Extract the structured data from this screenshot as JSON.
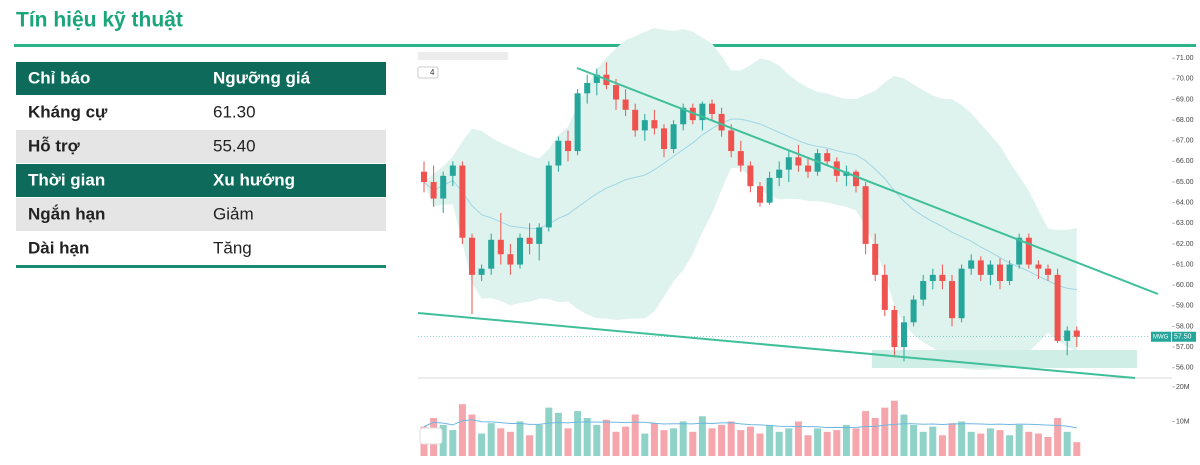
{
  "header": {
    "title": "Tín hiệu kỹ thuật"
  },
  "table": {
    "sections": [
      {
        "header": [
          "Chỉ báo",
          "Ngưỡng giá"
        ],
        "rows": [
          [
            "Kháng cự",
            "61.30"
          ],
          [
            "Hỗ trợ",
            "55.40"
          ]
        ]
      },
      {
        "header": [
          "Thời gian",
          "Xu hướng"
        ],
        "rows": [
          [
            "Ngắn hạn",
            "Giảm"
          ],
          [
            "Dài hạn",
            "Tăng"
          ]
        ]
      }
    ]
  },
  "chart_data": {
    "type": "candlestick",
    "symbol": "MWG",
    "toolbar_label": "4",
    "last_price": {
      "value": 57.5,
      "label": "57.50"
    },
    "up_color": "#26a69a",
    "down_color": "#ef5350",
    "volume_up_color": "#8fd3c8",
    "volume_down_color": "#f5a6ad",
    "open": [
      65.5,
      65,
      64.2,
      65.3,
      65.8,
      62.3,
      60.5,
      60.8,
      62.2,
      61.5,
      61,
      62.3,
      62,
      62.8,
      65.8,
      67,
      66.5,
      69.3,
      69.8,
      70.2,
      69.7,
      69,
      68.5,
      67.5,
      68,
      67.6,
      66.6,
      67.8,
      68.6,
      68,
      68.8,
      68.3,
      67.5,
      66.5,
      65.8,
      64.8,
      64,
      65.2,
      65.6,
      66.2,
      65.8,
      65.5,
      66.4,
      66,
      65.3,
      65.5,
      64.8,
      62,
      60.5,
      58.8,
      57,
      58.2,
      59.3,
      60.2,
      60.5,
      60.2,
      58.4,
      60.8,
      61.2,
      60.5,
      61,
      60.2,
      61,
      62.3,
      61,
      60.8,
      60.5,
      57.3,
      57.8
    ],
    "high": [
      66,
      65.8,
      65.5,
      66,
      66,
      62.5,
      61,
      62.5,
      63.5,
      62,
      62.5,
      63,
      63,
      66,
      67.2,
      67.5,
      69.5,
      70.2,
      70.5,
      70.8,
      70,
      69.5,
      68.8,
      68.3,
      68.5,
      67.8,
      68,
      68.8,
      68.8,
      68.9,
      69,
      68.6,
      67.8,
      67,
      66,
      65,
      65.5,
      66,
      66.5,
      66.8,
      66.2,
      66.6,
      66.6,
      66.2,
      65.8,
      65.6,
      65,
      62.5,
      61,
      59,
      58.5,
      59.5,
      60.5,
      60.8,
      61,
      60.5,
      61,
      61.5,
      61.4,
      61.2,
      61.3,
      61.2,
      62.5,
      62.5,
      61.2,
      61,
      60.8,
      58,
      58
    ],
    "low": [
      64.5,
      63.8,
      63.5,
      64.8,
      62,
      58.6,
      60.2,
      60.5,
      61,
      60.5,
      60.8,
      61.5,
      61.2,
      62.6,
      65.5,
      66,
      66.3,
      68.8,
      69.2,
      69.5,
      68.5,
      68.2,
      67.2,
      67,
      67.3,
      66.2,
      66.4,
      67.5,
      67.8,
      67.5,
      68,
      67.2,
      66.2,
      65.5,
      64.5,
      63.8,
      63.9,
      64.8,
      65,
      65.5,
      65.2,
      65.3,
      65.8,
      65,
      64.8,
      64.5,
      61.5,
      60.2,
      58.5,
      56.5,
      56.3,
      58,
      59,
      59.8,
      59.8,
      58,
      58.2,
      60.5,
      60.2,
      60,
      59.8,
      60,
      60.8,
      60.8,
      60.3,
      60.2,
      57.2,
      56.6,
      57
    ],
    "close": [
      65,
      64.2,
      65.3,
      65.8,
      62.3,
      60.5,
      60.8,
      62.2,
      61.5,
      61,
      62.3,
      62,
      62.8,
      65.8,
      67,
      66.5,
      69.3,
      69.8,
      70.2,
      69.7,
      69,
      68.5,
      67.5,
      68,
      67.6,
      66.6,
      67.8,
      68.6,
      68,
      68.8,
      68.3,
      67.5,
      66.5,
      65.8,
      64.8,
      64,
      65.2,
      65.6,
      66.2,
      65.8,
      65.5,
      66.4,
      66,
      65.3,
      65.5,
      64.8,
      62,
      60.5,
      58.8,
      57,
      58.2,
      59.3,
      60.2,
      60.5,
      60.2,
      58.4,
      60.8,
      61.2,
      60.5,
      61,
      60.2,
      61,
      62.3,
      61,
      60.8,
      60.5,
      57.3,
      57.8,
      57.5
    ],
    "volume": [
      8500000,
      11000000,
      9000000,
      7500000,
      15000000,
      12000000,
      6500000,
      9500000,
      8000000,
      7000000,
      10000000,
      6000000,
      9000000,
      14000000,
      12500000,
      8000000,
      13000000,
      11000000,
      9000000,
      10500000,
      7000000,
      8500000,
      12000000,
      6500000,
      9500000,
      7500000,
      8000000,
      10000000,
      7000000,
      11500000,
      8000000,
      9000000,
      10000000,
      7500000,
      8500000,
      6500000,
      9000000,
      7000000,
      8000000,
      10000000,
      6000000,
      8000000,
      7000000,
      7500000,
      9000000,
      8000000,
      13000000,
      11000000,
      14000000,
      16000000,
      12000000,
      9000000,
      7000000,
      8500000,
      6000000,
      9500000,
      10000000,
      7000000,
      6500000,
      8000000,
      7500000,
      6000000,
      9000000,
      7000000,
      6500000,
      5500000,
      11000000,
      7000000,
      4000000
    ],
    "ylim": [
      55.5,
      71.4
    ],
    "yticks": [
      {
        "value": 56,
        "label": "56.00"
      },
      {
        "value": 57,
        "label": "57.00"
      },
      {
        "value": 58,
        "label": "58.00"
      },
      {
        "value": 59,
        "label": "59.00"
      },
      {
        "value": 60,
        "label": "60.00"
      },
      {
        "value": 61,
        "label": "61.00"
      },
      {
        "value": 62,
        "label": "62.00"
      },
      {
        "value": 63,
        "label": "63.00"
      },
      {
        "value": 64,
        "label": "64.00"
      },
      {
        "value": 65,
        "label": "65.00"
      },
      {
        "value": 66,
        "label": "66.00"
      },
      {
        "value": 67,
        "label": "67.00"
      },
      {
        "value": 68,
        "label": "68.00"
      },
      {
        "value": 69,
        "label": "69.00"
      },
      {
        "value": 70,
        "label": "70.00"
      },
      {
        "value": 71,
        "label": "71.00"
      }
    ],
    "volume_ylim": [
      0,
      22000000
    ],
    "volume_yticks": [
      {
        "value": 10000000,
        "label": "10M"
      },
      {
        "value": 20000000,
        "label": "20M"
      }
    ]
  }
}
